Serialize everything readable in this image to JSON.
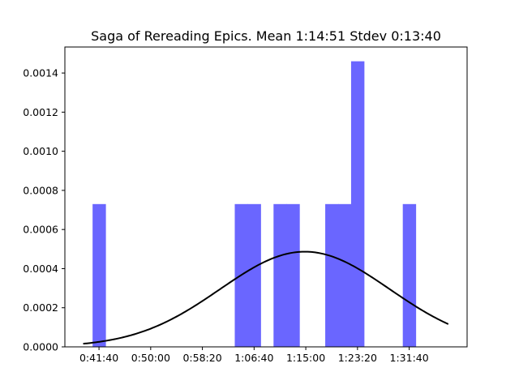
{
  "chart_data": {
    "type": "bar",
    "title": "Saga of Rereading Epics. Mean 1:14:51 Stdev 0:13:40",
    "xlabel": "",
    "ylabel": "",
    "x_unit": "seconds",
    "xlim": [
      2170,
      6060
    ],
    "ylim": [
      0,
      0.001533
    ],
    "x_ticks": [
      {
        "value": 2500,
        "label": "0:41:40"
      },
      {
        "value": 3000,
        "label": "0:50:00"
      },
      {
        "value": 3500,
        "label": "0:58:20"
      },
      {
        "value": 4000,
        "label": "1:06:40"
      },
      {
        "value": 4500,
        "label": "1:15:00"
      },
      {
        "value": 5000,
        "label": "1:23:20"
      },
      {
        "value": 5500,
        "label": "1:31:40"
      }
    ],
    "y_ticks": [
      {
        "value": 0.0,
        "label": "0.0000"
      },
      {
        "value": 0.0002,
        "label": "0.0002"
      },
      {
        "value": 0.0004,
        "label": "0.0004"
      },
      {
        "value": 0.0006,
        "label": "0.0006"
      },
      {
        "value": 0.0008,
        "label": "0.0008"
      },
      {
        "value": 0.001,
        "label": "0.0010"
      },
      {
        "value": 0.0012,
        "label": "0.0012"
      },
      {
        "value": 0.0014,
        "label": "0.0014"
      }
    ],
    "histogram": {
      "color": "#6a66ff",
      "bin_width": 125,
      "bins": [
        {
          "start": 2438,
          "value": 0.00073
        },
        {
          "start": 3813,
          "value": 0.00073
        },
        {
          "start": 3938,
          "value": 0.00073
        },
        {
          "start": 4188,
          "value": 0.00073
        },
        {
          "start": 4313,
          "value": 0.00073
        },
        {
          "start": 4688,
          "value": 0.00073
        },
        {
          "start": 4813,
          "value": 0.00073
        },
        {
          "start": 4938,
          "value": 0.00146
        },
        {
          "start": 5438,
          "value": 0.00073
        }
      ]
    },
    "normal_curve": {
      "color": "#000000",
      "mean": 4491,
      "stdev": 820,
      "x_start": 2347,
      "x_end": 5878
    }
  }
}
